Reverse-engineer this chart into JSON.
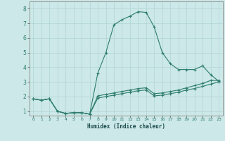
{
  "title": "",
  "xlabel": "Humidex (Indice chaleur)",
  "bg_color": "#cce8e8",
  "grid_color": "#b0d4d4",
  "line_color": "#2e7d6e",
  "xlim": [
    -0.5,
    23.5
  ],
  "ylim": [
    0.7,
    8.5
  ],
  "xticks": [
    0,
    1,
    2,
    3,
    4,
    5,
    6,
    7,
    8,
    9,
    10,
    11,
    12,
    13,
    14,
    15,
    16,
    17,
    18,
    19,
    20,
    21,
    22,
    23
  ],
  "yticks": [
    1,
    2,
    3,
    4,
    5,
    6,
    7,
    8
  ],
  "line1_x": [
    0,
    1,
    2,
    3,
    4,
    5,
    6,
    7,
    8,
    9,
    10,
    11,
    12,
    13,
    14,
    15,
    16,
    17,
    18,
    19,
    20,
    21,
    22,
    23
  ],
  "line1_y": [
    1.85,
    1.75,
    1.85,
    1.0,
    0.85,
    0.9,
    0.9,
    0.8,
    3.6,
    5.0,
    6.9,
    7.25,
    7.5,
    7.8,
    7.75,
    6.75,
    5.0,
    4.25,
    3.85,
    3.85,
    3.85,
    4.1,
    3.5,
    3.05
  ],
  "line2_x": [
    0,
    1,
    2,
    3,
    4,
    5,
    6,
    7,
    8,
    9,
    10,
    11,
    12,
    13,
    14,
    15,
    16,
    17,
    18,
    19,
    20,
    21,
    22,
    23
  ],
  "line2_y": [
    1.85,
    1.75,
    1.85,
    1.0,
    0.85,
    0.9,
    0.9,
    0.8,
    2.05,
    2.15,
    2.25,
    2.35,
    2.45,
    2.55,
    2.6,
    2.2,
    2.25,
    2.35,
    2.45,
    2.6,
    2.75,
    2.9,
    3.1,
    3.1
  ],
  "line3_x": [
    0,
    1,
    2,
    3,
    4,
    5,
    6,
    7,
    8,
    9,
    10,
    11,
    12,
    13,
    14,
    15,
    16,
    17,
    18,
    19,
    20,
    21,
    22,
    23
  ],
  "line3_y": [
    1.85,
    1.75,
    1.85,
    1.0,
    0.85,
    0.9,
    0.9,
    0.8,
    1.9,
    2.0,
    2.1,
    2.2,
    2.3,
    2.4,
    2.45,
    2.05,
    2.1,
    2.2,
    2.3,
    2.45,
    2.55,
    2.7,
    2.85,
    3.0
  ]
}
